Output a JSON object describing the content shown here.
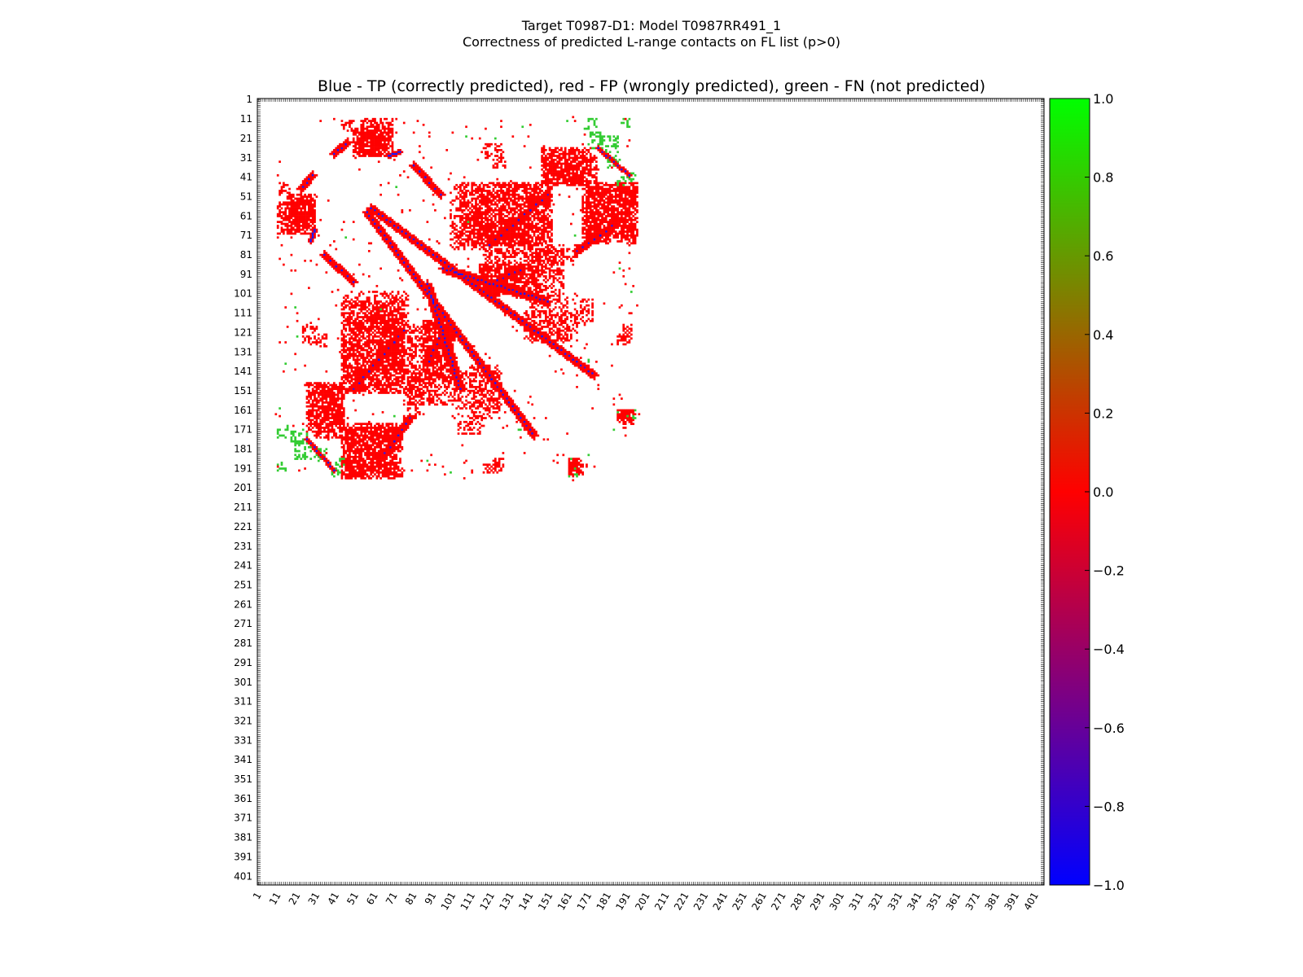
{
  "figure": {
    "title_line1": "Target T0987-D1: Model T0987RR491_1",
    "title_line2": "Correctness of predicted L-range contacts on FL list (p>0)"
  },
  "chart_data": {
    "type": "heatmap",
    "title": "Blue - TP (correctly predicted), red - FP (wrongly predicted), green - FN (not predicted)",
    "xlim": [
      1,
      405
    ],
    "ylim": [
      1,
      405
    ],
    "y_inverted": true,
    "grid": false,
    "x_ticks": [
      1,
      11,
      21,
      31,
      41,
      51,
      61,
      71,
      81,
      91,
      101,
      111,
      121,
      131,
      141,
      151,
      161,
      171,
      181,
      191,
      201,
      211,
      221,
      231,
      241,
      251,
      261,
      271,
      281,
      291,
      301,
      311,
      321,
      331,
      341,
      351,
      361,
      371,
      381,
      391,
      401
    ],
    "y_ticks": [
      1,
      11,
      21,
      31,
      41,
      51,
      61,
      71,
      81,
      91,
      101,
      111,
      121,
      131,
      141,
      151,
      161,
      171,
      181,
      191,
      201,
      211,
      221,
      231,
      241,
      251,
      261,
      271,
      281,
      291,
      301,
      311,
      321,
      331,
      341,
      351,
      361,
      371,
      381,
      391,
      401
    ],
    "colorbar": {
      "min": -1.0,
      "max": 1.0,
      "ticks": [
        "1.0",
        "0.8",
        "0.6",
        "0.4",
        "0.2",
        "0.0",
        "−0.2",
        "−0.4",
        "−0.6",
        "−0.8",
        "−1.0"
      ],
      "colors": [
        "#0000ff",
        "#ff0000",
        "#00ff00"
      ]
    },
    "category_colors": {
      "TP": "#1a1aff",
      "FP": "#ff0000",
      "FN": "#33cc33"
    },
    "strands": [
      {
        "a": [
          57,
          59
        ],
        "b": [
          143,
          174
        ],
        "width": 2,
        "tp_every": 2
      },
      {
        "a": [
          88,
          96
        ],
        "b": [
          105,
          150
        ],
        "width": 2,
        "tp_every": 2
      },
      {
        "a": [
          35,
          81
        ],
        "b": [
          50,
          95
        ],
        "width": 2,
        "tp_every": 3
      },
      {
        "a": [
          40,
          29
        ],
        "b": [
          47,
          23
        ],
        "width": 2,
        "tp_every": 2
      },
      {
        "a": [
          28,
          74
        ],
        "b": [
          30,
          68
        ],
        "width": 1,
        "tp_every": 1
      },
      {
        "a": [
          120,
          76
        ],
        "b": [
          150,
          50
        ],
        "width": 2,
        "tp_every": 3
      },
      {
        "a": [
          165,
          79
        ],
        "b": [
          185,
          65
        ],
        "width": 2,
        "tp_every": 3
      },
      {
        "a": [
          124,
          94
        ],
        "b": [
          138,
          88
        ],
        "width": 2,
        "tp_every": 3
      },
      {
        "a": [
          176,
          26
        ],
        "b": [
          192,
          40
        ],
        "width": 1,
        "tp_every": 2
      }
    ],
    "fp_regions": [
      {
        "x": [
          50,
          66
        ],
        "y": [
          17,
          30
        ],
        "density": 0.75
      },
      {
        "x": [
          44,
          52
        ],
        "y": [
          12,
          17
        ],
        "density": 0.4
      },
      {
        "x": [
          11,
          29
        ],
        "y": [
          54,
          70
        ],
        "density": 0.65
      },
      {
        "x": [
          100,
          148
        ],
        "y": [
          45,
          78
        ],
        "density": 0.3
      },
      {
        "x": [
          112,
          140
        ],
        "y": [
          64,
          76
        ],
        "density": 0.55
      },
      {
        "x": [
          148,
          175
        ],
        "y": [
          31,
          44
        ],
        "density": 0.55
      },
      {
        "x": [
          170,
          195
        ],
        "y": [
          47,
          75
        ],
        "density": 0.55
      },
      {
        "x": [
          115,
          145
        ],
        "y": [
          86,
          101
        ],
        "density": 0.6
      },
      {
        "x": [
          138,
          165
        ],
        "y": [
          76,
          86
        ],
        "density": 0.3
      },
      {
        "x": [
          44,
          76
        ],
        "y": [
          105,
          152
        ],
        "density": 0.55
      },
      {
        "x": [
          26,
          45
        ],
        "y": [
          147,
          172
        ],
        "density": 0.55
      },
      {
        "x": [
          78,
          102
        ],
        "y": [
          118,
          158
        ],
        "density": 0.45
      },
      {
        "x": [
          44,
          72
        ],
        "y": [
          168,
          196
        ],
        "density": 0.6
      },
      {
        "x": [
          103,
          126
        ],
        "y": [
          140,
          160
        ],
        "density": 0.35
      },
      {
        "x": [
          138,
          165
        ],
        "y": [
          110,
          125
        ],
        "density": 0.35
      },
      {
        "x": [
          186,
          192
        ],
        "y": [
          122,
          127
        ],
        "density": 0.6
      },
      {
        "x": [
          186,
          193
        ],
        "y": [
          161,
          167
        ],
        "density": 0.6
      },
      {
        "x": [
          161,
          168
        ],
        "y": [
          189,
          194
        ],
        "density": 0.7
      },
      {
        "x": [
          118,
          124
        ],
        "y": [
          189,
          193
        ],
        "density": 0.5
      },
      {
        "x": [
          117,
          127
        ],
        "y": [
          24,
          31
        ],
        "density": 0.4
      },
      {
        "x": [
          31,
          36
        ],
        "y": [
          122,
          128
        ],
        "density": 0.5
      },
      {
        "x": [
          164,
          173
        ],
        "y": [
          104,
          116
        ],
        "density": 0.35
      }
    ],
    "fn_regions": [
      {
        "x": [
          171,
          178
        ],
        "y": [
          18,
          26
        ],
        "density": 0.3
      },
      {
        "x": [
          181,
          187
        ],
        "y": [
          30,
          36
        ],
        "density": 0.3
      },
      {
        "x": [
          185,
          193
        ],
        "y": [
          41,
          45
        ],
        "density": 0.35
      },
      {
        "x": [
          11,
          16
        ],
        "y": [
          169,
          175
        ],
        "density": 0.3
      },
      {
        "x": [
          20,
          28
        ],
        "y": [
          177,
          186
        ],
        "density": 0.35
      },
      {
        "x": [
          11,
          15
        ],
        "y": [
          188,
          192
        ],
        "density": 0.4
      },
      {
        "x": [
          161,
          166
        ],
        "y": [
          192,
          195
        ],
        "density": 0.35
      },
      {
        "x": [
          186,
          192
        ],
        "y": [
          162,
          166
        ],
        "density": 0.3
      },
      {
        "x": [
          39,
          43
        ],
        "y": [
          191,
          195
        ],
        "density": 0.4
      }
    ],
    "scatter_extent": {
      "x": [
        11,
        194
      ],
      "y": [
        10,
        197
      ]
    },
    "scatter_count": 260
  }
}
